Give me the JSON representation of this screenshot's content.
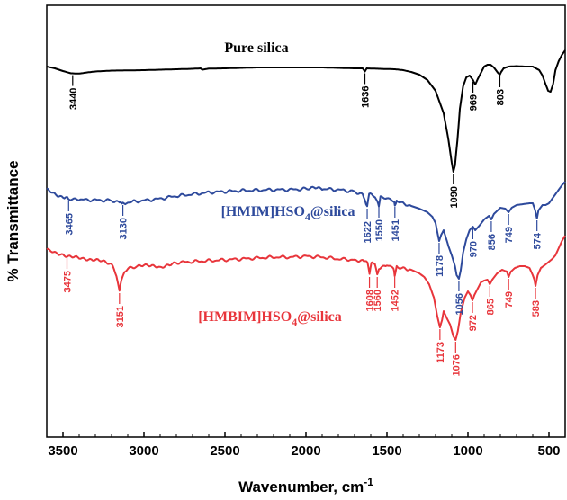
{
  "chart_data": {
    "type": "line",
    "title": "",
    "xlabel": "Wavenumber, cm",
    "xlabel_superscript": "-1",
    "ylabel": "% Transmittance",
    "xlim": [
      3600,
      400
    ],
    "x_reversed": true,
    "xticks": [
      "3500",
      "3000",
      "2500",
      "2000",
      "1500",
      "1000",
      "500"
    ],
    "xtick_values": [
      3500,
      3000,
      2500,
      2000,
      1500,
      1000,
      500
    ],
    "y_ticks_shown": false,
    "grid": false,
    "legend": "none",
    "series": [
      {
        "name": "Pure silica",
        "color": "#000000",
        "points": [
          [
            3600,
            68
          ],
          [
            3550,
            70
          ],
          [
            3500,
            73
          ],
          [
            3450,
            75.5
          ],
          [
            3400,
            75.8
          ],
          [
            3350,
            74.5
          ],
          [
            3300,
            73.5
          ],
          [
            3200,
            72.5
          ],
          [
            3100,
            72.3
          ],
          [
            3000,
            72
          ],
          [
            2900,
            71.5
          ],
          [
            2800,
            71
          ],
          [
            2700,
            70.5
          ],
          [
            2650,
            70
          ],
          [
            2640,
            71.5
          ],
          [
            2600,
            70.3
          ],
          [
            2500,
            70
          ],
          [
            2400,
            69.5
          ],
          [
            2300,
            69
          ],
          [
            2200,
            69
          ],
          [
            2100,
            69
          ],
          [
            2000,
            69
          ],
          [
            1900,
            69
          ],
          [
            1800,
            69.5
          ],
          [
            1700,
            70
          ],
          [
            1650,
            70
          ],
          [
            1636,
            73.5
          ],
          [
            1625,
            70
          ],
          [
            1550,
            70.5
          ],
          [
            1450,
            71
          ],
          [
            1400,
            72
          ],
          [
            1350,
            74
          ],
          [
            1300,
            77
          ],
          [
            1250,
            83
          ],
          [
            1200,
            95
          ],
          [
            1150,
            120
          ],
          [
            1120,
            150
          ],
          [
            1100,
            175
          ],
          [
            1090,
            185
          ],
          [
            1080,
            178
          ],
          [
            1065,
            150
          ],
          [
            1050,
            115
          ],
          [
            1030,
            90
          ],
          [
            1010,
            80
          ],
          [
            990,
            78
          ],
          [
            969,
            83
          ],
          [
            955,
            88
          ],
          [
            940,
            82
          ],
          [
            920,
            75
          ],
          [
            900,
            68
          ],
          [
            880,
            66
          ],
          [
            860,
            66
          ],
          [
            840,
            69
          ],
          [
            815,
            75
          ],
          [
            803,
            77
          ],
          [
            795,
            74
          ],
          [
            780,
            70
          ],
          [
            750,
            68
          ],
          [
            700,
            67.5
          ],
          [
            650,
            68
          ],
          [
            600,
            68
          ],
          [
            580,
            70
          ],
          [
            560,
            72
          ],
          [
            540,
            78
          ],
          [
            520,
            88
          ],
          [
            505,
            95
          ],
          [
            490,
            96
          ],
          [
            475,
            88
          ],
          [
            460,
            72
          ],
          [
            440,
            62
          ],
          [
            420,
            55
          ],
          [
            400,
            50
          ]
        ]
      },
      {
        "name": "[HMIM]HSO",
        "name_subscript": "4",
        "name_suffix": "@silica",
        "color": "#2e4a9c",
        "points": [
          [
            3600,
            205
          ],
          [
            3550,
            210
          ],
          [
            3500,
            213
          ],
          [
            3465,
            215
          ],
          [
            3400,
            216
          ],
          [
            3300,
            216.5
          ],
          [
            3200,
            217
          ],
          [
            3150,
            218
          ],
          [
            3130,
            220
          ],
          [
            3100,
            219
          ],
          [
            3000,
            217
          ],
          [
            2900,
            215
          ],
          [
            2800,
            212
          ],
          [
            2700,
            210
          ],
          [
            2600,
            208
          ],
          [
            2500,
            207
          ],
          [
            2400,
            206
          ],
          [
            2300,
            205.5
          ],
          [
            2200,
            205
          ],
          [
            2100,
            205
          ],
          [
            2000,
            204
          ],
          [
            1950,
            203
          ],
          [
            1900,
            204
          ],
          [
            1800,
            205
          ],
          [
            1700,
            207
          ],
          [
            1650,
            210
          ],
          [
            1622,
            224
          ],
          [
            1610,
            210
          ],
          [
            1580,
            212
          ],
          [
            1560,
            218
          ],
          [
            1550,
            222
          ],
          [
            1540,
            214
          ],
          [
            1500,
            214
          ],
          [
            1460,
            217
          ],
          [
            1451,
            222
          ],
          [
            1440,
            216
          ],
          [
            1400,
            220
          ],
          [
            1350,
            223
          ],
          [
            1300,
            226
          ],
          [
            1250,
            230
          ],
          [
            1220,
            235
          ],
          [
            1200,
            242
          ],
          [
            1178,
            262
          ],
          [
            1165,
            255
          ],
          [
            1150,
            250
          ],
          [
            1120,
            268
          ],
          [
            1100,
            278
          ],
          [
            1080,
            290
          ],
          [
            1070,
            300
          ],
          [
            1056,
            304
          ],
          [
            1045,
            295
          ],
          [
            1030,
            275
          ],
          [
            1010,
            260
          ],
          [
            990,
            250
          ],
          [
            970,
            246
          ],
          [
            955,
            250
          ],
          [
            930,
            245
          ],
          [
            900,
            238
          ],
          [
            870,
            234
          ],
          [
            856,
            238
          ],
          [
            840,
            232
          ],
          [
            800,
            225
          ],
          [
            770,
            226
          ],
          [
            749,
            230
          ],
          [
            730,
            225
          ],
          [
            700,
            222
          ],
          [
            660,
            221
          ],
          [
            620,
            220
          ],
          [
            600,
            220
          ],
          [
            585,
            228
          ],
          [
            574,
            237
          ],
          [
            565,
            228
          ],
          [
            540,
            222
          ],
          [
            520,
            222
          ],
          [
            500,
            220
          ],
          [
            480,
            215
          ],
          [
            460,
            210
          ],
          [
            440,
            205
          ],
          [
            420,
            200
          ],
          [
            400,
            196
          ]
        ]
      },
      {
        "name": "[HMBIM]HSO",
        "name_subscript": "4",
        "name_suffix": "@silica",
        "color": "#e8353b",
        "points": [
          [
            3600,
            272
          ],
          [
            3550,
            275
          ],
          [
            3500,
            277
          ],
          [
            3475,
            279
          ],
          [
            3400,
            281
          ],
          [
            3350,
            282
          ],
          [
            3300,
            283
          ],
          [
            3250,
            285
          ],
          [
            3200,
            288
          ],
          [
            3170,
            300
          ],
          [
            3151,
            318
          ],
          [
            3140,
            305
          ],
          [
            3120,
            295
          ],
          [
            3050,
            290
          ],
          [
            3000,
            288
          ],
          [
            2950,
            290
          ],
          [
            2900,
            292
          ],
          [
            2850,
            288
          ],
          [
            2800,
            286
          ],
          [
            2700,
            285
          ],
          [
            2600,
            284
          ],
          [
            2500,
            283
          ],
          [
            2400,
            282
          ],
          [
            2300,
            281
          ],
          [
            2200,
            280
          ],
          [
            2100,
            280
          ],
          [
            2000,
            279
          ],
          [
            1900,
            280
          ],
          [
            1800,
            282
          ],
          [
            1700,
            283
          ],
          [
            1650,
            284
          ],
          [
            1620,
            285
          ],
          [
            1608,
            300
          ],
          [
            1596,
            286
          ],
          [
            1575,
            288
          ],
          [
            1560,
            300
          ],
          [
            1550,
            292
          ],
          [
            1500,
            288
          ],
          [
            1460,
            292
          ],
          [
            1452,
            300
          ],
          [
            1440,
            290
          ],
          [
            1400,
            292
          ],
          [
            1350,
            294
          ],
          [
            1300,
            298
          ],
          [
            1270,
            302
          ],
          [
            1240,
            310
          ],
          [
            1210,
            325
          ],
          [
            1190,
            345
          ],
          [
            1173,
            358
          ],
          [
            1160,
            350
          ],
          [
            1150,
            340
          ],
          [
            1130,
            348
          ],
          [
            1110,
            355
          ],
          [
            1090,
            368
          ],
          [
            1076,
            372
          ],
          [
            1062,
            362
          ],
          [
            1045,
            342
          ],
          [
            1020,
            325
          ],
          [
            1000,
            318
          ],
          [
            985,
            322
          ],
          [
            972,
            328
          ],
          [
            960,
            322
          ],
          [
            940,
            315
          ],
          [
            920,
            308
          ],
          [
            900,
            306
          ],
          [
            880,
            305
          ],
          [
            865,
            310
          ],
          [
            850,
            305
          ],
          [
            820,
            298
          ],
          [
            790,
            294
          ],
          [
            760,
            296
          ],
          [
            749,
            302
          ],
          [
            735,
            296
          ],
          [
            710,
            292
          ],
          [
            680,
            290
          ],
          [
            650,
            290
          ],
          [
            620,
            292
          ],
          [
            600,
            300
          ],
          [
            590,
            305
          ],
          [
            583,
            312
          ],
          [
            570,
            300
          ],
          [
            550,
            292
          ],
          [
            520,
            288
          ],
          [
            500,
            285
          ],
          [
            480,
            282
          ],
          [
            460,
            278
          ],
          [
            440,
            270
          ],
          [
            420,
            262
          ],
          [
            400,
            256
          ]
        ]
      }
    ],
    "annotations": [
      {
        "text": "3440",
        "x": 3440,
        "series": 0
      },
      {
        "text": "1636",
        "x": 1636,
        "series": 0
      },
      {
        "text": "1090",
        "x": 1090,
        "series": 0
      },
      {
        "text": "969",
        "x": 969,
        "series": 0
      },
      {
        "text": "803",
        "x": 803,
        "series": 0
      },
      {
        "text": "3465",
        "x": 3465,
        "series": 1
      },
      {
        "text": "3130",
        "x": 3130,
        "series": 1
      },
      {
        "text": "1622",
        "x": 1622,
        "series": 1
      },
      {
        "text": "1550",
        "x": 1550,
        "series": 1
      },
      {
        "text": "1451",
        "x": 1451,
        "series": 1
      },
      {
        "text": "1178",
        "x": 1178,
        "series": 1
      },
      {
        "text": "1056",
        "x": 1056,
        "series": 1
      },
      {
        "text": "970",
        "x": 970,
        "series": 1
      },
      {
        "text": "856",
        "x": 856,
        "series": 1
      },
      {
        "text": "749",
        "x": 749,
        "series": 1
      },
      {
        "text": "574",
        "x": 574,
        "series": 1
      },
      {
        "text": "3475",
        "x": 3475,
        "series": 2
      },
      {
        "text": "3151",
        "x": 3151,
        "series": 2
      },
      {
        "text": "1608",
        "x": 1608,
        "series": 2
      },
      {
        "text": "1560",
        "x": 1560,
        "series": 2
      },
      {
        "text": "1452",
        "x": 1452,
        "series": 2
      },
      {
        "text": "1173",
        "x": 1173,
        "series": 2
      },
      {
        "text": "1076",
        "x": 1076,
        "series": 2
      },
      {
        "text": "972",
        "x": 972,
        "series": 2
      },
      {
        "text": "865",
        "x": 865,
        "series": 2
      },
      {
        "text": "749",
        "x": 749,
        "series": 2
      },
      {
        "text": "583",
        "x": 583,
        "series": 2
      }
    ]
  }
}
